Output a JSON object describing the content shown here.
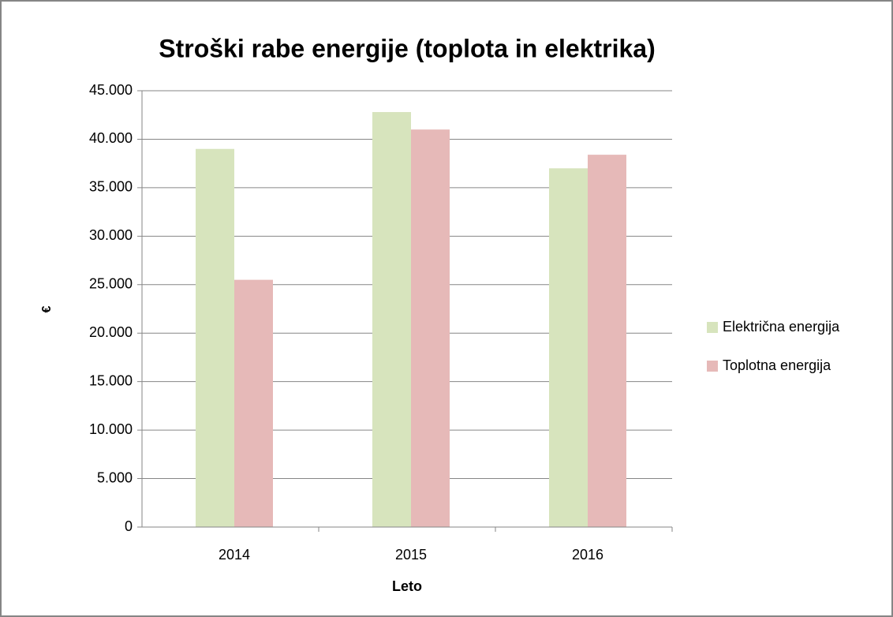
{
  "chart_data": {
    "type": "bar",
    "title": "Stroški rabe energije (toplota in elektrika)",
    "x_label": "Leto",
    "y_label": "€",
    "categories": [
      "2014",
      "2015",
      "2016"
    ],
    "series": [
      {
        "name": "Električna energija",
        "color": "#d7e4bd",
        "values": [
          39000,
          42800,
          37000
        ]
      },
      {
        "name": "Toplotna energija",
        "color": "#e6b9b8",
        "values": [
          25500,
          41000,
          38400
        ]
      }
    ],
    "ylim": [
      0,
      45000
    ],
    "yticks": [
      0,
      {
        "value": 5000,
        "label": "5.000"
      },
      {
        "value": 10000,
        "label": "10.000"
      },
      {
        "value": 15000,
        "label": "15.000"
      },
      {
        "value": 20000,
        "label": "20.000"
      },
      {
        "value": 25000,
        "label": "25.000"
      },
      {
        "value": 30000,
        "label": "30.000"
      },
      {
        "value": 35000,
        "label": "35.000"
      },
      {
        "value": 40000,
        "label": "40.000"
      },
      {
        "value": 45000,
        "label": "45.000"
      }
    ],
    "grid": true,
    "legend": "right"
  }
}
